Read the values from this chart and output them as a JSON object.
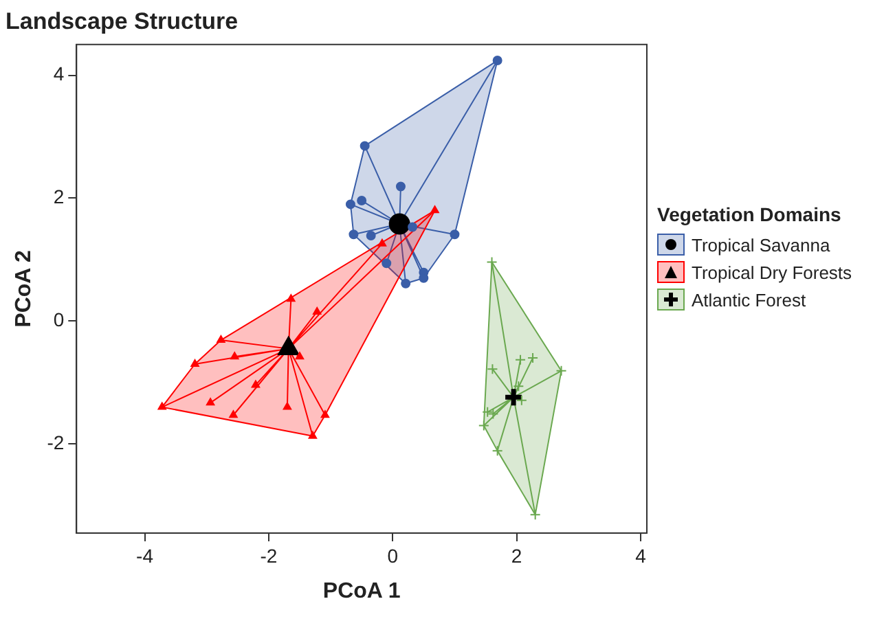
{
  "chart_data": {
    "type": "scatter",
    "title": "Landscape Structure",
    "xlabel": "PCoA 1",
    "ylabel": "PCoA 2",
    "legend_title": "Vegetation Domains",
    "legend": "right",
    "grid": false,
    "xlim": [
      -5.1,
      4.1
    ],
    "ylim": [
      -3.45,
      4.5
    ],
    "xticks": [
      -4,
      -2,
      0,
      2,
      4
    ],
    "yticks": [
      -2,
      0,
      2,
      4
    ],
    "series": [
      {
        "name": "Tropical Savanna",
        "color": "#3a5ea8",
        "marker": "circle",
        "x": [
          1.69,
          -0.45,
          0.13,
          -0.68,
          -0.5,
          -0.63,
          -0.35,
          0.32,
          1.0,
          -0.1,
          0.5,
          0.5,
          0.21
        ],
        "values": [
          4.24,
          2.85,
          2.19,
          1.9,
          1.96,
          1.41,
          1.39,
          1.53,
          1.41,
          0.94,
          0.79,
          0.7,
          0.61
        ]
      },
      {
        "name": "Tropical Dry Forests",
        "color": "#ff0000",
        "marker": "triangle",
        "x": [
          0.68,
          -0.17,
          -1.64,
          -1.22,
          -2.77,
          -2.55,
          -1.5,
          -3.19,
          -2.21,
          -2.94,
          -3.72,
          -2.57,
          -1.7,
          -1.09,
          -1.29
        ],
        "values": [
          1.8,
          1.26,
          0.36,
          0.15,
          -0.31,
          -0.58,
          -0.58,
          -0.7,
          -1.04,
          -1.33,
          -1.4,
          -1.53,
          -1.4,
          -1.53,
          -1.87
        ]
      },
      {
        "name": "Atlantic Forest",
        "color": "#6aa84f",
        "marker": "cross",
        "x": [
          1.6,
          2.06,
          2.26,
          2.72,
          1.61,
          2.03,
          2.08,
          1.53,
          1.62,
          1.47,
          1.69,
          2.3
        ],
        "values": [
          0.96,
          -0.63,
          -0.6,
          -0.81,
          -0.78,
          -1.06,
          -1.29,
          -1.48,
          -1.51,
          -1.7,
          -2.11,
          -3.15
        ]
      },
      {
        "color": "#000000",
        "marker": "circle",
        "x": [
          0.11
        ],
        "values": [
          1.58
        ]
      },
      {
        "color": "#000000",
        "marker": "triangle",
        "x": [
          -1.68
        ],
        "values": [
          -0.45
        ]
      },
      {
        "color": "#000000",
        "marker": "cross",
        "x": [
          1.95
        ],
        "values": [
          -1.24
        ]
      }
    ]
  }
}
